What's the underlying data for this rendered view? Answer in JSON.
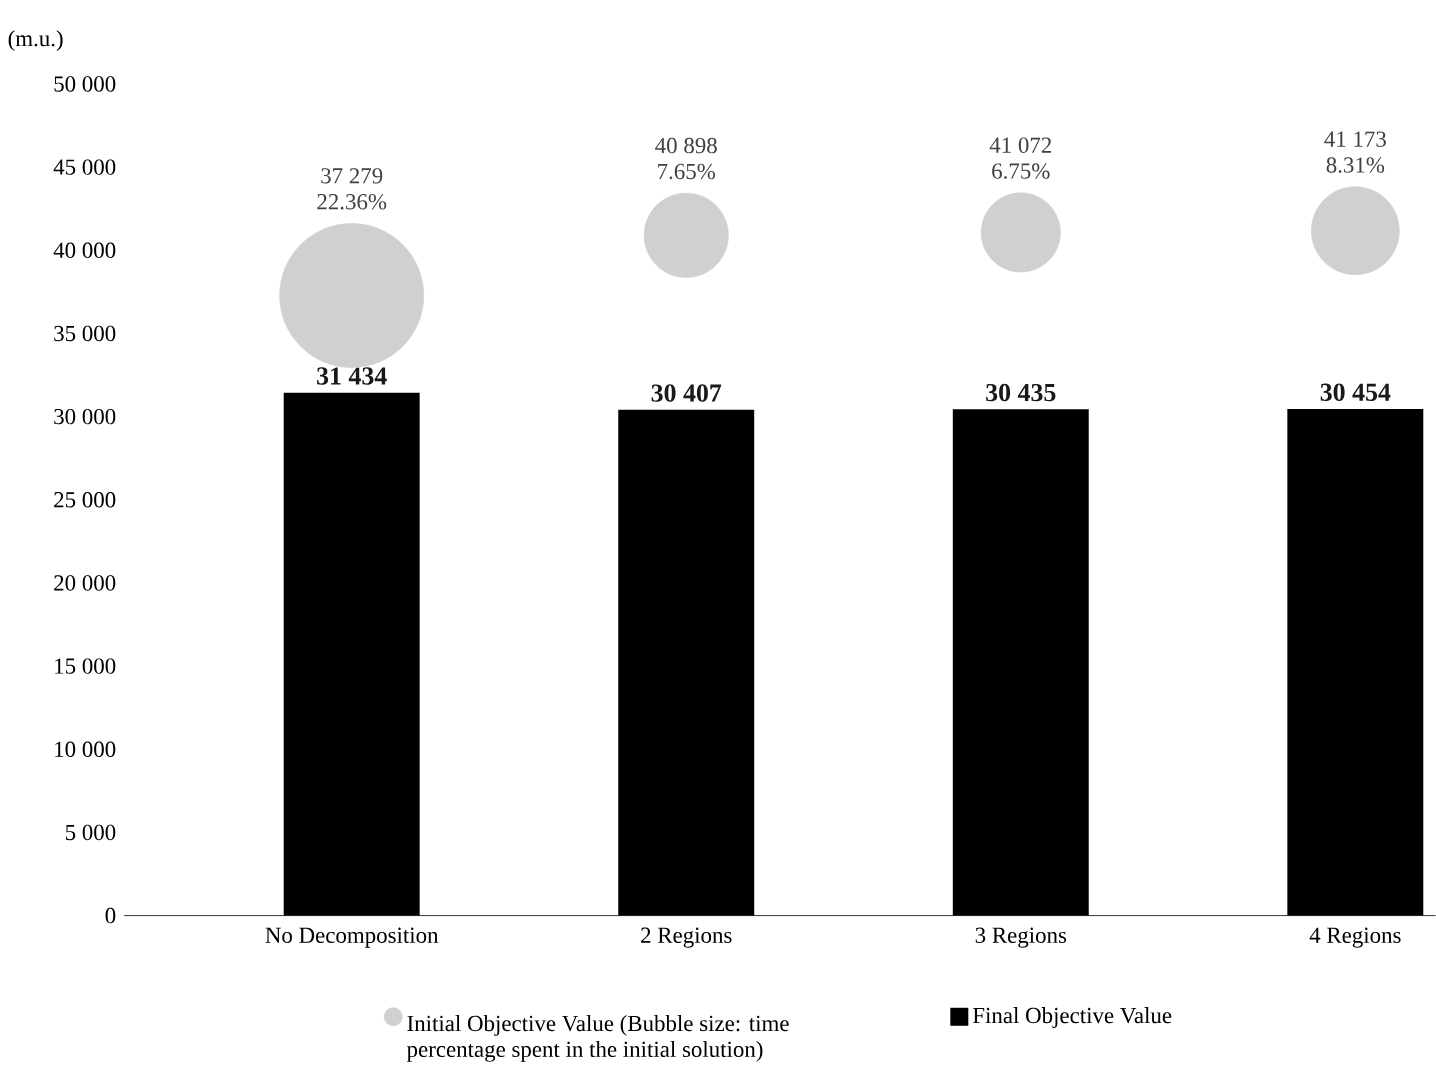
{
  "chart_data": {
    "type": "bar",
    "ylabel": "(m.u.)",
    "categories": [
      "No Decomposition",
      "2 Regions",
      "3 Regions",
      "4 Regions"
    ],
    "ylim": [
      0,
      50000
    ],
    "yticks": [
      0,
      {
        "value": 5000,
        "label": "5 000"
      },
      {
        "value": 10000,
        "label": "10 000"
      },
      {
        "value": 15000,
        "label": "15 000"
      },
      {
        "value": 20000,
        "label": "20 000"
      },
      {
        "value": 25000,
        "label": "25 000"
      },
      {
        "value": 30000,
        "label": "30 000"
      },
      {
        "value": 35000,
        "label": "35 000"
      },
      {
        "value": 40000,
        "label": "40 000"
      },
      {
        "value": 45000,
        "label": "45 000"
      },
      {
        "value": 50000,
        "label": "50 000"
      }
    ],
    "legend": "bottom",
    "series": [
      {
        "name": "Initial Objective Value (Bubble size: time percentage spent in the initial solution)",
        "type": "bubble",
        "color": "#d0d0d0",
        "values": [
          37279,
          40898,
          41072,
          41173
        ],
        "sizes": [
          1,
          0.342,
          0.302,
          0.372
        ],
        "value_labels": [
          "37 279",
          "40 898",
          "41 072",
          "41 173"
        ]
      },
      {
        "name": "Final Objective Value",
        "color": "#000000",
        "values": [
          31434,
          30407,
          30435,
          30454
        ],
        "value_labels": [
          "31 434",
          "30 407",
          "30 435",
          "30 454"
        ]
      }
    ],
    "annotations": [
      "22.36%",
      "7.65%",
      "6.75%",
      "8.31%"
    ]
  }
}
